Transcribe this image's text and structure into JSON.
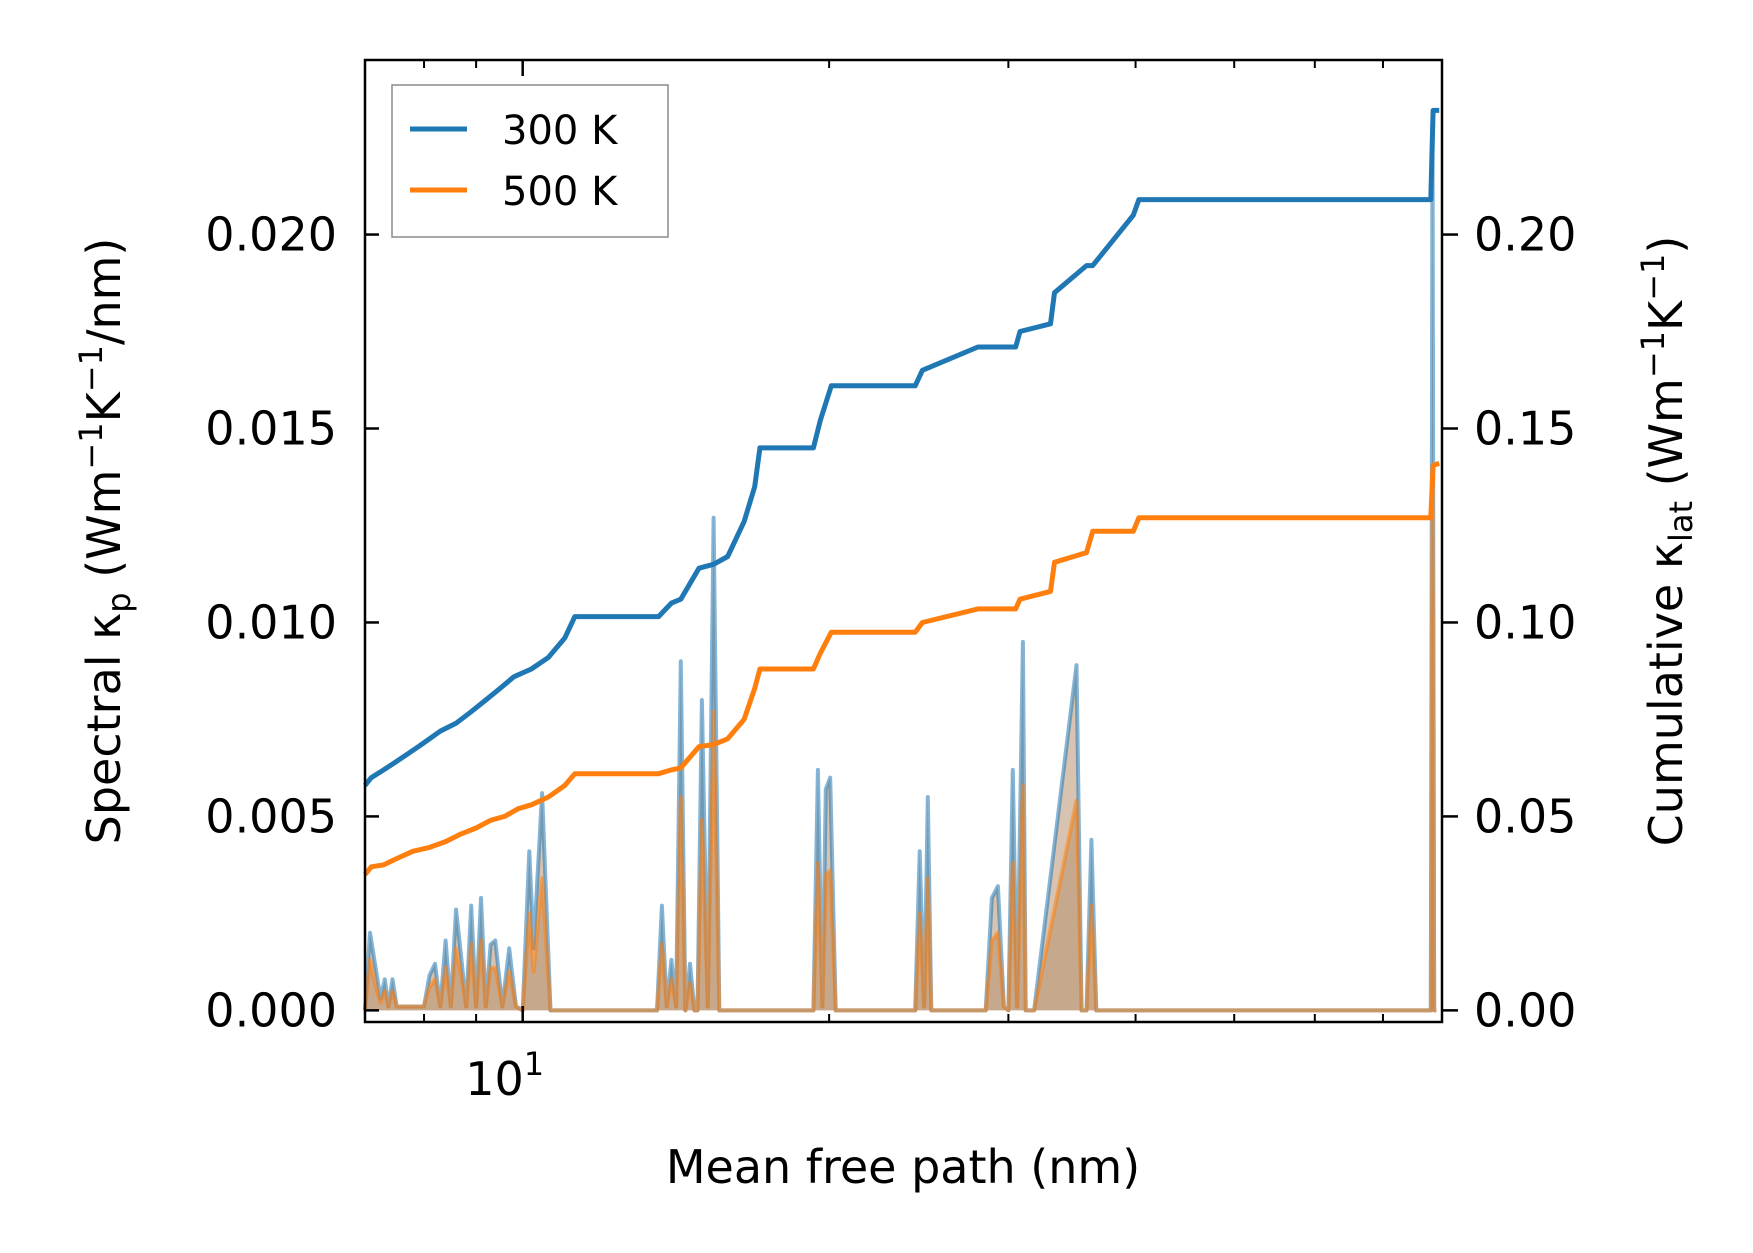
{
  "chart_data": {
    "type": "line",
    "xscale": "log",
    "xlim": [
      7.0,
      80.0
    ],
    "xlabel": "Mean free path (nm)",
    "x_major_tick": {
      "value": 10,
      "label_base": "10",
      "label_exp": "1"
    },
    "left_axis": {
      "label_parts": [
        "Spectral κ",
        "p",
        " (Wm",
        "−1",
        "K",
        "−1",
        "/nm)"
      ],
      "ylim": [
        -0.0003,
        0.0245
      ],
      "ticks": [
        0.0,
        0.005,
        0.01,
        0.015,
        0.02
      ],
      "tick_labels": [
        "0.000",
        "0.005",
        "0.010",
        "0.015",
        "0.020"
      ]
    },
    "right_axis": {
      "label_parts": [
        "Cumulative κ",
        "lat",
        " (Wm",
        "−1",
        "K",
        "−1",
        ")"
      ],
      "ylim": [
        -0.003,
        0.245
      ],
      "ticks": [
        0.0,
        0.05,
        0.1,
        0.15,
        0.2
      ],
      "tick_labels": [
        "0.00",
        "0.05",
        "0.10",
        "0.15",
        "0.20"
      ]
    },
    "legend": {
      "position": "top-left",
      "entries": [
        "300 K",
        "500 K"
      ]
    },
    "colors": {
      "300 K": "#1f77b4",
      "500 K": "#ff7f0e",
      "spectral_fill": "#b89270"
    },
    "cumulative_series": [
      {
        "name": "300 K",
        "axis": "right",
        "x": [
          7.0,
          7.1,
          7.3,
          7.5,
          7.7,
          7.9,
          8.1,
          8.3,
          8.6,
          8.9,
          9.2,
          9.5,
          9.8,
          10.2,
          10.6,
          11.0,
          11.25,
          13.6,
          14.0,
          14.3,
          14.9,
          15.4,
          15.9,
          16.5,
          16.9,
          17.1,
          19.3,
          19.6,
          20.1,
          24.3,
          24.7,
          28.0,
          28.4,
          30.5,
          30.8,
          33.0,
          33.3,
          35.8,
          36.3,
          39.8,
          40.3,
          78.0,
          78.4,
          79.5
        ],
        "y": [
          0.058,
          0.06,
          0.062,
          0.064,
          0.066,
          0.068,
          0.07,
          0.072,
          0.074,
          0.077,
          0.08,
          0.083,
          0.086,
          0.088,
          0.091,
          0.096,
          0.1015,
          0.1015,
          0.105,
          0.106,
          0.114,
          0.115,
          0.117,
          0.126,
          0.135,
          0.145,
          0.145,
          0.152,
          0.161,
          0.161,
          0.165,
          0.171,
          0.171,
          0.171,
          0.175,
          0.177,
          0.185,
          0.192,
          0.192,
          0.205,
          0.209,
          0.209,
          0.232,
          0.232
        ]
      },
      {
        "name": "500 K",
        "axis": "right",
        "x": [
          7.0,
          7.1,
          7.3,
          7.5,
          7.8,
          8.1,
          8.4,
          8.7,
          9.0,
          9.3,
          9.6,
          9.9,
          10.2,
          10.6,
          11.0,
          11.25,
          13.6,
          14.0,
          14.3,
          14.9,
          15.4,
          15.9,
          16.5,
          16.9,
          17.1,
          19.3,
          19.6,
          20.1,
          24.3,
          24.7,
          28.0,
          28.4,
          30.5,
          30.8,
          33.0,
          33.3,
          35.8,
          36.3,
          39.8,
          40.3,
          78.0,
          78.4,
          79.5
        ],
        "y": [
          0.035,
          0.037,
          0.0375,
          0.039,
          0.041,
          0.042,
          0.0435,
          0.0455,
          0.047,
          0.049,
          0.05,
          0.052,
          0.053,
          0.055,
          0.058,
          0.061,
          0.061,
          0.062,
          0.0625,
          0.068,
          0.0685,
          0.07,
          0.075,
          0.083,
          0.088,
          0.088,
          0.092,
          0.0975,
          0.0975,
          0.1,
          0.1035,
          0.1035,
          0.1035,
          0.106,
          0.108,
          0.1155,
          0.118,
          0.1235,
          0.1235,
          0.127,
          0.127,
          0.1405,
          0.141
        ]
      }
    ],
    "spectral_series": [
      {
        "name": "300 K",
        "axis": "left",
        "x": [
          7.0,
          7.08,
          7.16,
          7.25,
          7.32,
          7.38,
          7.45,
          7.52,
          7.58,
          7.65,
          7.72,
          7.78,
          7.85,
          7.92,
          8.0,
          8.1,
          8.2,
          8.3,
          8.4,
          8.5,
          8.6,
          8.7,
          8.8,
          8.9,
          9.0,
          9.1,
          9.2,
          9.3,
          9.4,
          9.55,
          9.7,
          9.85,
          10.0,
          10.15,
          10.25,
          10.45,
          10.65,
          10.85,
          11.05,
          11.25,
          11.5,
          13.55,
          13.7,
          13.85,
          14.0,
          14.15,
          14.3,
          14.45,
          14.6,
          14.75,
          14.85,
          15.0,
          15.2,
          15.4,
          15.6,
          15.8,
          16.0,
          16.3,
          16.5,
          16.65,
          16.85,
          17.1,
          17.35,
          19.3,
          19.5,
          19.7,
          19.85,
          20.05,
          20.3,
          24.3,
          24.55,
          24.8,
          25.0,
          25.2,
          25.4,
          28.0,
          28.5,
          28.9,
          29.3,
          29.7,
          30.0,
          30.3,
          30.6,
          31.0,
          31.2,
          31.5,
          31.8,
          35.0,
          35.4,
          35.8,
          36.2,
          36.6,
          37.0,
          37.5,
          78.0,
          78.3,
          78.6,
          79.0
        ],
        "y": [
          0.0,
          0.002,
          0.0012,
          0.0003,
          0.0008,
          0.0001,
          0.0008,
          0.0001,
          0.0001,
          0.0001,
          0.0001,
          0.0001,
          0.0001,
          0.0001,
          0.0001,
          0.0009,
          0.0012,
          0.0001,
          0.0018,
          0.0001,
          0.0026,
          0.0014,
          0.0001,
          0.0027,
          0.0001,
          0.0029,
          0.0001,
          0.0017,
          0.0018,
          0.0001,
          0.0016,
          0.0001,
          0.0,
          0.0041,
          0.0016,
          0.0056,
          0.0,
          0.0,
          0.0,
          0.0,
          0.0,
          0.0,
          0.0027,
          0.0001,
          0.0013,
          0.0001,
          0.009,
          0.0,
          0.0012,
          0.0,
          0.0,
          0.008,
          0.0001,
          0.0127,
          0.0,
          0.0,
          0.0,
          0.0,
          0.0,
          0.0,
          0.0,
          0.0,
          0.0,
          0.0,
          0.0062,
          0.0001,
          0.0057,
          0.006,
          0.0,
          0.0,
          0.0041,
          0.0001,
          0.0055,
          0.0,
          0.0,
          0.0,
          0.0,
          0.0029,
          0.0032,
          0.0001,
          0.0,
          0.0062,
          0.0001,
          0.0095,
          0.0,
          0.0,
          0.0,
          0.0089,
          0.0,
          0.0,
          0.0044,
          0.0,
          0.0,
          0.0,
          0.0,
          0.023,
          0.0,
          0.0
        ]
      },
      {
        "name": "500 K",
        "axis": "left",
        "x": [
          7.0,
          7.08,
          7.16,
          7.25,
          7.32,
          7.38,
          7.45,
          7.52,
          7.58,
          7.65,
          7.72,
          7.78,
          7.85,
          7.92,
          8.0,
          8.1,
          8.2,
          8.3,
          8.4,
          8.5,
          8.6,
          8.7,
          8.8,
          8.9,
          9.0,
          9.1,
          9.2,
          9.3,
          9.4,
          9.55,
          9.7,
          9.85,
          10.0,
          10.15,
          10.25,
          10.45,
          10.65,
          10.85,
          11.05,
          11.25,
          11.5,
          13.55,
          13.7,
          13.85,
          14.0,
          14.15,
          14.3,
          14.45,
          14.6,
          14.75,
          14.85,
          15.0,
          15.2,
          15.4,
          15.6,
          15.8,
          16.0,
          16.3,
          16.5,
          16.65,
          16.85,
          17.1,
          17.35,
          19.3,
          19.5,
          19.7,
          19.85,
          20.05,
          20.3,
          24.3,
          24.55,
          24.8,
          25.0,
          25.2,
          25.4,
          28.0,
          28.5,
          28.9,
          29.3,
          29.7,
          30.0,
          30.3,
          30.6,
          31.0,
          31.2,
          31.5,
          31.8,
          35.0,
          35.4,
          35.8,
          36.2,
          36.6,
          37.0,
          37.5,
          78.0,
          78.3,
          78.6,
          79.0
        ],
        "y": [
          0.0,
          0.0013,
          0.0007,
          0.0002,
          0.0005,
          0.0001,
          0.0005,
          0.0001,
          0.0001,
          0.0001,
          0.0001,
          0.0001,
          0.0001,
          0.0001,
          0.0001,
          0.0006,
          0.0008,
          0.0001,
          0.0011,
          0.0001,
          0.0016,
          0.0009,
          0.0001,
          0.0017,
          0.0001,
          0.0018,
          0.0001,
          0.0011,
          0.0011,
          0.0001,
          0.001,
          0.0001,
          0.0,
          0.0025,
          0.001,
          0.0034,
          0.0,
          0.0,
          0.0,
          0.0,
          0.0,
          0.0,
          0.0017,
          0.0001,
          0.0008,
          0.0001,
          0.0055,
          0.0,
          0.0007,
          0.0,
          0.0,
          0.0049,
          0.0001,
          0.0077,
          0.0,
          0.0,
          0.0,
          0.0,
          0.0,
          0.0,
          0.0,
          0.0,
          0.0,
          0.0,
          0.0038,
          0.0001,
          0.0035,
          0.0036,
          0.0,
          0.0,
          0.0025,
          0.0001,
          0.0034,
          0.0,
          0.0,
          0.0,
          0.0,
          0.0018,
          0.002,
          0.0001,
          0.0,
          0.0038,
          0.0001,
          0.0058,
          0.0,
          0.0,
          0.0,
          0.0054,
          0.0,
          0.0,
          0.0027,
          0.0,
          0.0,
          0.0,
          0.0,
          0.014,
          0.0,
          0.0
        ]
      }
    ]
  }
}
